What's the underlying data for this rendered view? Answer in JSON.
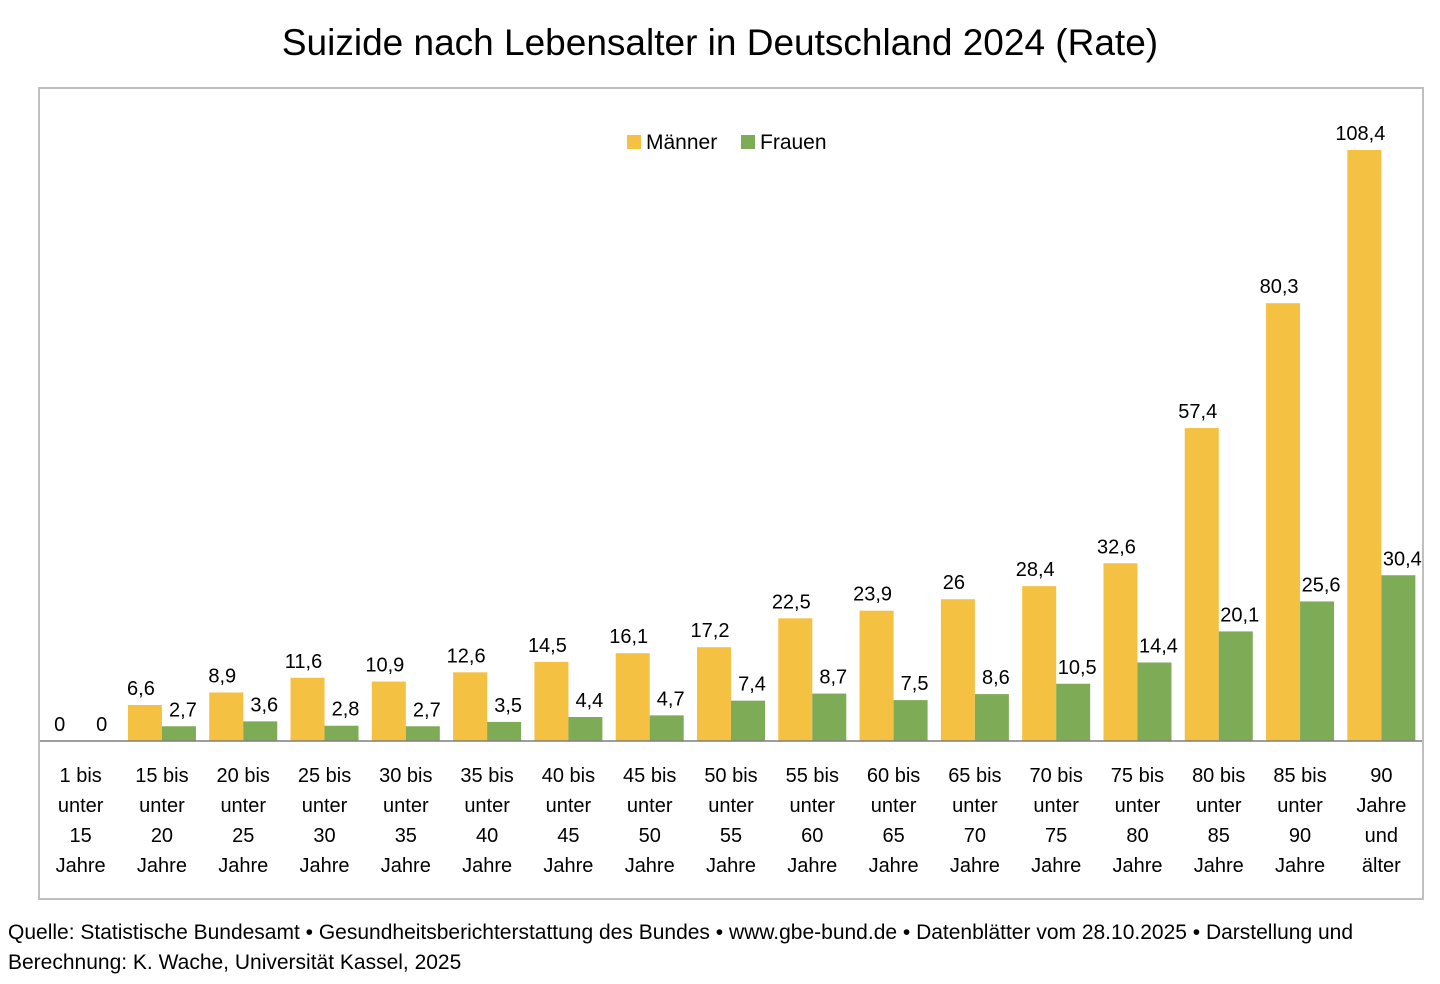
{
  "chart_data": {
    "type": "bar",
    "title": "Suizide nach Lebensalter in Deutschland 2024  (Rate)",
    "xlabel": "",
    "ylabel": "",
    "ylim": [
      0,
      115
    ],
    "grid": false,
    "legend_position": "top-center",
    "categories": [
      [
        "1  bis",
        "unter",
        "15",
        "Jahre"
      ],
      [
        "15 bis",
        "unter",
        "20",
        "Jahre"
      ],
      [
        "20 bis",
        "unter",
        "25",
        "Jahre"
      ],
      [
        "25 bis",
        "unter",
        "30",
        "Jahre"
      ],
      [
        "30 bis",
        "unter",
        "35",
        "Jahre"
      ],
      [
        "35 bis",
        "unter",
        "40",
        "Jahre"
      ],
      [
        "40 bis",
        "unter",
        "45",
        "Jahre"
      ],
      [
        "45 bis",
        "unter",
        "50",
        "Jahre"
      ],
      [
        "50 bis",
        "unter",
        "55",
        "Jahre"
      ],
      [
        "55 bis",
        "unter",
        "60",
        "Jahre"
      ],
      [
        "60 bis",
        "unter",
        "65",
        "Jahre"
      ],
      [
        "65 bis",
        "unter",
        "70",
        "Jahre"
      ],
      [
        "70 bis",
        "unter",
        "75",
        "Jahre"
      ],
      [
        "75 bis",
        "unter",
        "80",
        "Jahre"
      ],
      [
        "80 bis",
        "unter",
        "85",
        "Jahre"
      ],
      [
        "85 bis",
        "unter",
        "90",
        "Jahre"
      ],
      [
        "90",
        "Jahre",
        "und",
        "älter"
      ]
    ],
    "series": [
      {
        "name": "Männer",
        "color": "#F4C142",
        "values": [
          0,
          6.6,
          8.9,
          11.6,
          10.9,
          12.6,
          14.5,
          16.1,
          17.2,
          22.5,
          23.9,
          26,
          28.4,
          32.6,
          57.4,
          80.3,
          108.4
        ],
        "labels": [
          "0",
          "6,6",
          "8,9",
          "11,6",
          "10,9",
          "12,6",
          "14,5",
          "16,1",
          "17,2",
          "22,5",
          "23,9",
          "26",
          "28,4",
          "32,6",
          "57,4",
          "80,3",
          "108,4"
        ]
      },
      {
        "name": "Frauen",
        "color": "#7EAB55",
        "values": [
          0,
          2.7,
          3.6,
          2.8,
          2.7,
          3.5,
          4.4,
          4.7,
          7.4,
          8.7,
          7.5,
          8.6,
          10.5,
          14.4,
          20.1,
          25.6,
          30.4
        ],
        "labels": [
          "0",
          "2,7",
          "3,6",
          "2,8",
          "2,7",
          "3,5",
          "4,4",
          "4,7",
          "7,4",
          "8,7",
          "7,5",
          "8,6",
          "10,5",
          "14,4",
          "20,1",
          "25,6",
          "30,4"
        ]
      }
    ]
  },
  "source_text": "Quelle: Statistische Bundesamt • Gesundheitsberichterstattung des Bundes • www.gbe-bund.de • Datenblätter vom 28.10.2025 • Darstellung und Berechnung: K. Wache, Universität Kassel, 2025"
}
